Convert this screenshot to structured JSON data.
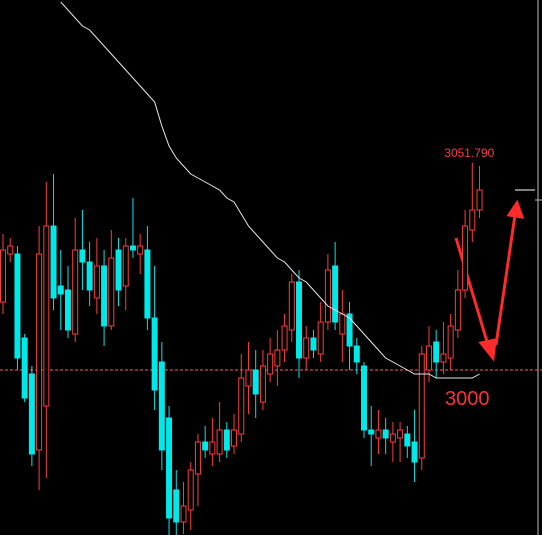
{
  "chart_data": {
    "type": "candlestick",
    "ylim": [
      2958.75,
      3092.5
    ],
    "up_color": "#ff3c3c",
    "down_color": "#00e8e8",
    "ma_color": "#e8e8e8",
    "open": [
      3017,
      3029,
      3029,
      3008,
      2999,
      2980,
      2991,
      3036,
      3021,
      3020,
      3009,
      3030,
      3027,
      3018,
      3026,
      3011,
      3030,
      3021,
      3031,
      3029,
      3030,
      3013,
      3002,
      2988,
      2970,
      2962,
      2965,
      2974,
      2982,
      2979,
      2979,
      2985,
      2981,
      2984,
      2996,
      3000,
      2992,
      2999,
      3001,
      3005,
      3010,
      3022,
      3003,
      3008,
      3004,
      3012,
      3026,
      3009,
      3014,
      3006,
      3001,
      2985,
      2983,
      2985,
      2982,
      2983,
      2984,
      2982,
      2978,
      3000,
      3007,
      3002,
      3003,
      3010,
      3020,
      3035,
      3040
    ],
    "high": [
      3034,
      3033,
      3031,
      3009,
      3001,
      3036,
      3047,
      3049,
      3030,
      3026,
      3038,
      3040,
      3032,
      3033,
      3030,
      3035,
      3033,
      3033,
      3043,
      3034,
      3036,
      3026,
      3007,
      2991,
      2975,
      2972,
      2977,
      2984,
      2986,
      2988,
      2992,
      2987,
      2989,
      3004,
      3007,
      3005,
      3005,
      3008,
      3010,
      3014,
      3024,
      3025,
      3011,
      3010,
      3017,
      3029,
      3032,
      3020,
      3017,
      3008,
      3002,
      2991,
      2990,
      2988,
      2987,
      2987,
      2986,
      2990,
      3006,
      3011,
      3010,
      3012,
      3014,
      3025,
      3040,
      3051.79,
      3051
    ],
    "low": [
      3014,
      3027,
      3000,
      2992,
      2976,
      2970,
      2973,
      3015,
      3010,
      3008,
      3007,
      3020,
      3016,
      3014,
      3006,
      3010,
      3016,
      3015,
      3028,
      3024,
      3010,
      2990,
      2975,
      2958,
      2957,
      2959,
      2960,
      2966,
      2978,
      2976,
      2977,
      2978,
      2979,
      2982,
      2989,
      2988,
      2990,
      2997,
      2996,
      3002,
      3007,
      2998,
      3000,
      3003,
      3002,
      3010,
      3010,
      3002,
      3000,
      2999,
      2983,
      2976,
      2979,
      2979,
      2977,
      2977,
      2978,
      2972,
      2975,
      2997,
      2998,
      2999,
      3000,
      3008,
      3018,
      3032,
      3038
    ],
    "close": [
      3030,
      3031,
      3003,
      2993,
      2979,
      3029,
      3036,
      3018,
      3019,
      3010,
      3030,
      3027,
      3020,
      3026,
      3011,
      3028,
      3020,
      3031,
      3030,
      3031,
      3013,
      2995,
      2980,
      2963,
      2962,
      2966,
      2975,
      2982,
      2980,
      2982,
      2985,
      2980,
      2985,
      2998,
      3000,
      2994,
      3001,
      3004,
      3005,
      3011,
      3022,
      3003,
      3008,
      3005,
      3012,
      3025,
      3012,
      3014,
      3006,
      3002,
      2985,
      2984,
      2985,
      2983,
      2984,
      2985,
      2981,
      2977,
      3004,
      3006,
      3002,
      3004,
      3011,
      3020,
      3036,
      3040,
      3045
    ],
    "ma": [
      null,
      null,
      null,
      null,
      null,
      null,
      null,
      null,
      3092,
      3090,
      3088,
      3086,
      3085,
      3083,
      3081,
      3079,
      3077,
      3075,
      3073,
      3071,
      3069,
      3067,
      3061,
      3056,
      3053,
      3051,
      3049,
      3048,
      3047,
      3046,
      3045,
      3043,
      3042,
      3039,
      3036,
      3034,
      3032,
      3030,
      3028,
      3027,
      3025,
      3023,
      3022,
      3020,
      3018,
      3016,
      3015,
      3014,
      3013,
      3011,
      3009,
      3007,
      3005,
      3003,
      3002,
      3001,
      3000,
      2999,
      2999,
      2999,
      2998,
      2998,
      2998,
      2998,
      2998,
      2998,
      2999
    ],
    "hline": 3000,
    "high_label": "3051.790"
  }
}
